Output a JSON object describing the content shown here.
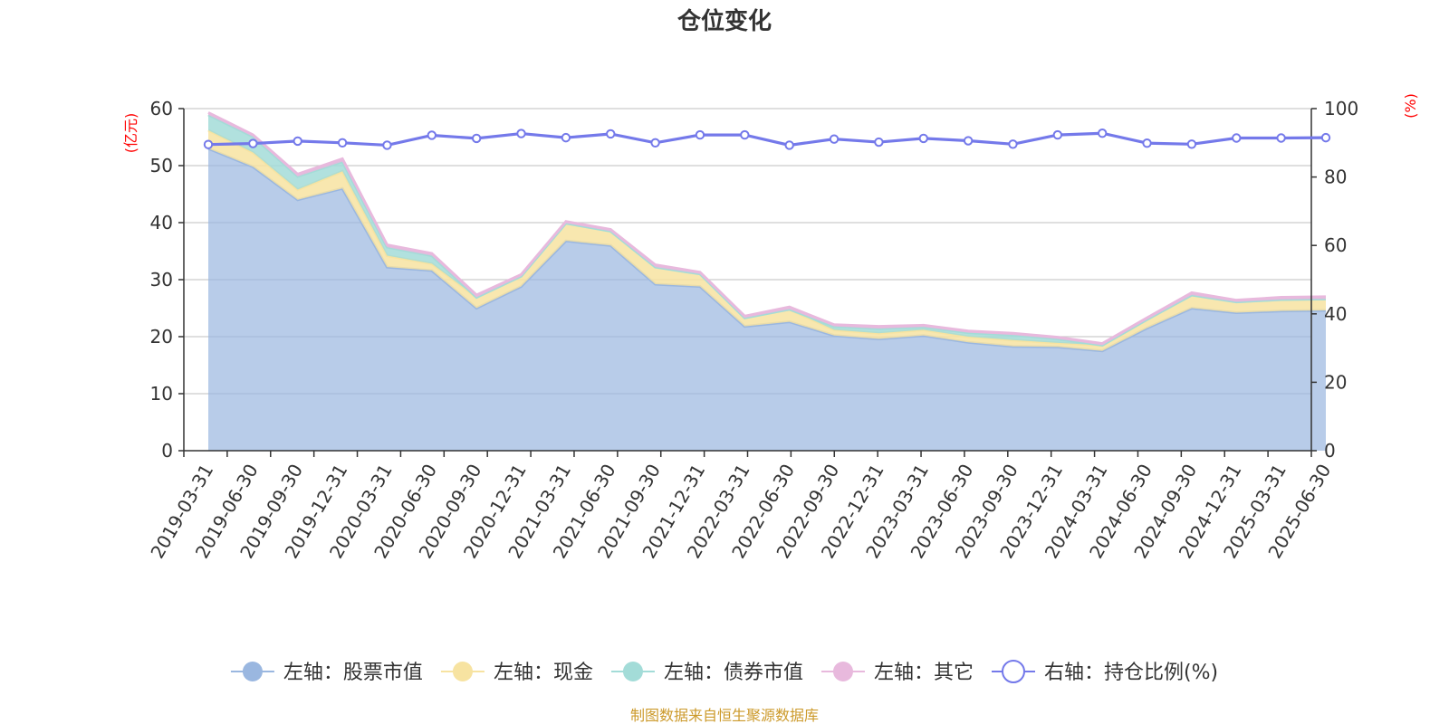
{
  "chart_data": {
    "type": "area",
    "title": "仓位变化",
    "left_axis_unit": "(亿元)",
    "right_axis_unit": "(%)",
    "categories": [
      "2019-03-31",
      "2019-06-30",
      "2019-09-30",
      "2019-12-31",
      "2020-03-31",
      "2020-06-30",
      "2020-09-30",
      "2020-12-31",
      "2021-03-31",
      "2021-06-30",
      "2021-09-30",
      "2021-12-31",
      "2022-03-31",
      "2022-06-30",
      "2022-09-30",
      "2022-12-31",
      "2023-03-31",
      "2023-06-30",
      "2023-09-30",
      "2023-12-31",
      "2024-03-31",
      "2024-06-30",
      "2024-09-30",
      "2024-12-31",
      "2025-03-31",
      "2025-06-30"
    ],
    "left_ylim": [
      0,
      60
    ],
    "left_ticks": [
      0,
      10,
      20,
      30,
      40,
      50,
      60
    ],
    "right_ylim": [
      0,
      100
    ],
    "right_ticks": [
      0,
      20,
      40,
      60,
      80,
      100
    ],
    "grid": true,
    "legend_position": "bottom",
    "stacked_series": [
      {
        "name": "左轴：股票市值",
        "color": "#9ab7e0",
        "values": [
          53.0,
          49.8,
          44.0,
          46.0,
          32.2,
          31.6,
          25.0,
          28.8,
          36.8,
          36.0,
          29.2,
          28.8,
          21.8,
          22.6,
          20.2,
          19.6,
          20.2,
          19.0,
          18.3,
          18.2,
          17.5,
          21.5,
          25.0,
          24.2,
          24.5,
          24.6
        ]
      },
      {
        "name": "左轴：现金",
        "color": "#f7e3a1",
        "values": [
          3.2,
          2.5,
          1.8,
          3.0,
          2.0,
          1.2,
          1.9,
          1.8,
          3.1,
          2.5,
          3.0,
          2.2,
          1.5,
          2.2,
          1.0,
          1.0,
          1.0,
          1.0,
          1.1,
          0.7,
          1.0,
          1.5,
          2.3,
          1.9,
          2.0,
          2.0
        ]
      },
      {
        "name": "左轴：债券市值",
        "color": "#a3dcd8",
        "values": [
          2.7,
          2.8,
          2.3,
          1.7,
          1.5,
          1.4,
          0.0,
          0.0,
          0.0,
          0.0,
          0.0,
          0.0,
          0.0,
          0.0,
          0.6,
          0.8,
          0.5,
          0.7,
          0.9,
          0.7,
          0.0,
          0.0,
          0.0,
          0.0,
          0.0,
          0.0
        ]
      },
      {
        "name": "左轴：其它",
        "color": "#e8b9dd",
        "values": [
          0.4,
          0.3,
          0.4,
          0.5,
          0.4,
          0.4,
          0.4,
          0.3,
          0.3,
          0.3,
          0.4,
          0.3,
          0.3,
          0.4,
          0.3,
          0.4,
          0.3,
          0.3,
          0.3,
          0.3,
          0.3,
          0.3,
          0.4,
          0.3,
          0.4,
          0.4
        ]
      }
    ],
    "line_series": {
      "name": "右轴：持仓比例(%)",
      "color": "#7479ea",
      "values": [
        89.5,
        89.8,
        90.5,
        90.0,
        89.3,
        92.2,
        91.3,
        92.7,
        91.5,
        92.6,
        90.0,
        92.3,
        92.3,
        89.3,
        91.1,
        90.2,
        91.3,
        90.6,
        89.6,
        92.3,
        92.8,
        89.9,
        89.6,
        91.4,
        91.4,
        91.5
      ]
    }
  },
  "source_text": "制图数据来自恒生聚源数据库"
}
